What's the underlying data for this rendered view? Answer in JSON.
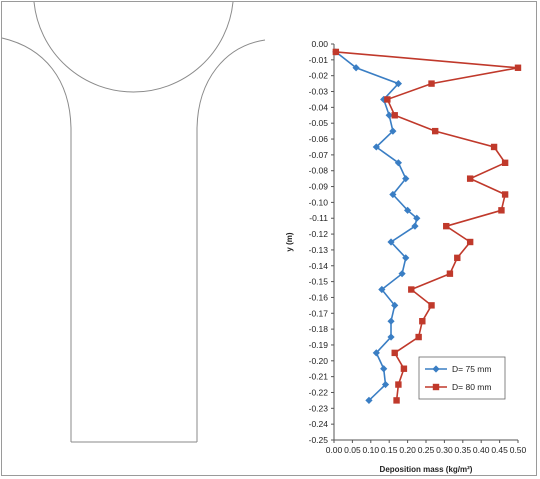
{
  "chart_data": {
    "type": "line",
    "xlabel": "Deposition mass (kg/m²)",
    "ylabel": "y (m)",
    "xlim": [
      0,
      0.5
    ],
    "ylim": [
      -0.25,
      0.0
    ],
    "xticks": [
      "0.00",
      "0.05",
      "0.10",
      "0.15",
      "0.20",
      "0.25",
      "0.30",
      "0.35",
      "0.40",
      "0.45",
      "0.50"
    ],
    "yticks": [
      "0.00",
      "-0.01",
      "-0.02",
      "-0.03",
      "-0.04",
      "-0.05",
      "-0.06",
      "-0.07",
      "-0.08",
      "-0.09",
      "-0.10",
      "-0.11",
      "-0.12",
      "-0.13",
      "-0.14",
      "-0.15",
      "-0.16",
      "-0.17",
      "-0.18",
      "-0.19",
      "-0.20",
      "-0.21",
      "-0.22",
      "-0.23",
      "-0.24",
      "-0.25"
    ],
    "legend": "bottom-right",
    "grid": false,
    "series": [
      {
        "name": "D= 75 mm",
        "color": "#3a7ec4",
        "marker": "diamond",
        "points": [
          [
            0.005,
            -0.005
          ],
          [
            0.06,
            -0.015
          ],
          [
            0.175,
            -0.025
          ],
          [
            0.135,
            -0.035
          ],
          [
            0.15,
            -0.045
          ],
          [
            0.16,
            -0.055
          ],
          [
            0.115,
            -0.065
          ],
          [
            0.175,
            -0.075
          ],
          [
            0.195,
            -0.085
          ],
          [
            0.16,
            -0.095
          ],
          [
            0.2,
            -0.105
          ],
          [
            0.225,
            -0.11
          ],
          [
            0.22,
            -0.115
          ],
          [
            0.155,
            -0.125
          ],
          [
            0.195,
            -0.135
          ],
          [
            0.185,
            -0.145
          ],
          [
            0.13,
            -0.155
          ],
          [
            0.165,
            -0.165
          ],
          [
            0.155,
            -0.175
          ],
          [
            0.155,
            -0.185
          ],
          [
            0.115,
            -0.195
          ],
          [
            0.135,
            -0.205
          ],
          [
            0.14,
            -0.215
          ],
          [
            0.095,
            -0.225
          ]
        ]
      },
      {
        "name": "D= 80 mm",
        "color": "#c0392b",
        "marker": "square",
        "points": [
          [
            0.005,
            -0.005
          ],
          [
            0.5,
            -0.015
          ],
          [
            0.265,
            -0.025
          ],
          [
            0.145,
            -0.035
          ],
          [
            0.165,
            -0.045
          ],
          [
            0.275,
            -0.055
          ],
          [
            0.435,
            -0.065
          ],
          [
            0.465,
            -0.075
          ],
          [
            0.37,
            -0.085
          ],
          [
            0.465,
            -0.095
          ],
          [
            0.455,
            -0.105
          ],
          [
            0.305,
            -0.115
          ],
          [
            0.37,
            -0.125
          ],
          [
            0.335,
            -0.135
          ],
          [
            0.315,
            -0.145
          ],
          [
            0.21,
            -0.155
          ],
          [
            0.265,
            -0.165
          ],
          [
            0.24,
            -0.175
          ],
          [
            0.23,
            -0.185
          ],
          [
            0.165,
            -0.195
          ],
          [
            0.19,
            -0.205
          ],
          [
            0.175,
            -0.215
          ],
          [
            0.17,
            -0.225
          ]
        ]
      }
    ]
  }
}
